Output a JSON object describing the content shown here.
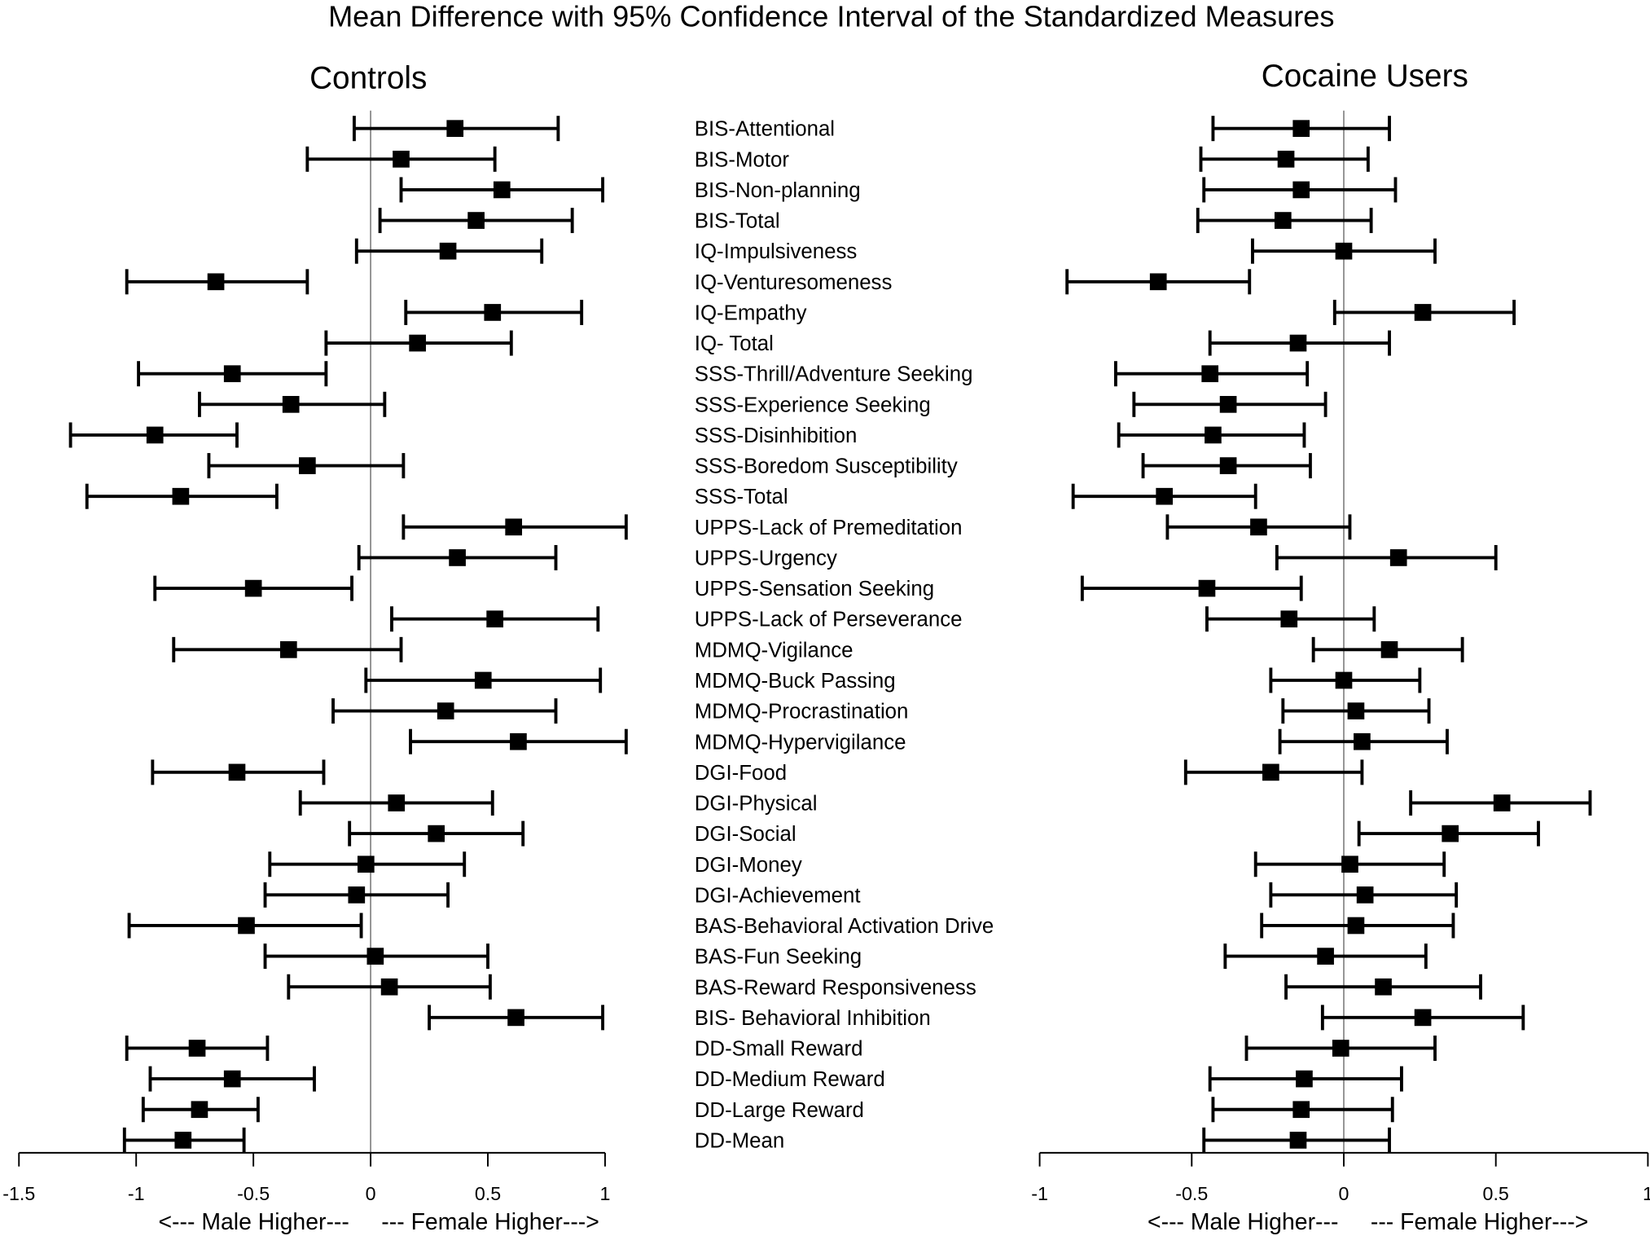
{
  "chart_data": {
    "type": "forest",
    "title": "Mean Difference with 95% Confidence Interval of the Standardized Measures",
    "measures": [
      "BIS-Attentional",
      "BIS-Motor",
      "BIS-Non-planning",
      "BIS-Total",
      "IQ-Impulsiveness",
      "IQ-Venturesomeness",
      "IQ-Empathy",
      "IQ- Total",
      "SSS-Thrill/Adventure Seeking",
      "SSS-Experience Seeking",
      "SSS-Disinhibition",
      "SSS-Boredom Susceptibility",
      "SSS-Total",
      "UPPS-Lack of Premeditation",
      "UPPS-Urgency",
      "UPPS-Sensation Seeking",
      "UPPS-Lack of Perseverance",
      "MDMQ-Vigilance",
      "MDMQ-Buck Passing",
      "MDMQ-Procrastination",
      "MDMQ-Hypervigilance",
      "DGI-Food",
      "DGI-Physical",
      "DGI-Social",
      "DGI-Money",
      "DGI-Achievement",
      "BAS-Behavioral Activation Drive",
      "BAS-Fun Seeking",
      "BAS-Reward Responsiveness",
      "BIS- Behavioral Inhibition",
      "DD-Small Reward",
      "DD-Medium Reward",
      "DD-Large Reward",
      "DD-Mean"
    ],
    "panels": [
      {
        "name": "Controls",
        "xlim": [
          -1.5,
          1
        ],
        "ticks": [
          -1.5,
          -1,
          -0.5,
          0,
          0.5,
          1
        ],
        "tick_labels": [
          "-1.5",
          "-1",
          "-0.5",
          "0",
          "0.5",
          "1"
        ],
        "xlabel": "<--- Male Higher---     --- Female Higher--->",
        "mean": [
          0.36,
          0.13,
          0.56,
          0.45,
          0.33,
          -0.66,
          0.52,
          0.2,
          -0.59,
          -0.34,
          -0.92,
          -0.27,
          -0.81,
          0.61,
          0.37,
          -0.5,
          0.53,
          -0.35,
          0.48,
          0.32,
          0.63,
          -0.57,
          0.11,
          0.28,
          -0.02,
          -0.06,
          -0.53,
          0.02,
          0.08,
          0.62,
          -0.74,
          -0.59,
          -0.73,
          -0.8
        ],
        "lower": [
          -0.07,
          -0.27,
          0.13,
          0.04,
          -0.06,
          -1.04,
          0.15,
          -0.19,
          -0.99,
          -0.73,
          -1.28,
          -0.69,
          -1.21,
          0.14,
          -0.05,
          -0.92,
          0.09,
          -0.84,
          -0.02,
          -0.16,
          0.17,
          -0.93,
          -0.3,
          -0.09,
          -0.43,
          -0.45,
          -1.03,
          -0.45,
          -0.35,
          0.25,
          -1.04,
          -0.94,
          -0.97,
          -1.05
        ],
        "upper": [
          0.8,
          0.53,
          0.99,
          0.86,
          0.73,
          -0.27,
          0.9,
          0.6,
          -0.19,
          0.06,
          -0.57,
          0.14,
          -0.4,
          1.09,
          0.79,
          -0.08,
          0.97,
          0.13,
          0.98,
          0.79,
          1.09,
          -0.2,
          0.52,
          0.65,
          0.4,
          0.33,
          -0.04,
          0.5,
          0.51,
          0.99,
          -0.44,
          -0.24,
          -0.48,
          -0.54
        ]
      },
      {
        "name": "Cocaine Users",
        "xlim": [
          -1,
          1
        ],
        "ticks": [
          -1,
          -0.5,
          0,
          0.5,
          1
        ],
        "tick_labels": [
          "-1",
          "-0.5",
          "0",
          "0.5",
          "1"
        ],
        "xlabel": "<--- Male Higher---     --- Female Higher--->",
        "mean": [
          -0.14,
          -0.19,
          -0.14,
          -0.2,
          0.0,
          -0.61,
          0.26,
          -0.15,
          -0.44,
          -0.38,
          -0.43,
          -0.38,
          -0.59,
          -0.28,
          0.18,
          -0.45,
          -0.18,
          0.15,
          0.0,
          0.04,
          0.06,
          -0.24,
          0.52,
          0.35,
          0.02,
          0.07,
          0.04,
          -0.06,
          0.13,
          0.26,
          -0.01,
          -0.13,
          -0.14,
          -0.15
        ],
        "lower": [
          -0.43,
          -0.47,
          -0.46,
          -0.48,
          -0.3,
          -0.91,
          -0.03,
          -0.44,
          -0.75,
          -0.69,
          -0.74,
          -0.66,
          -0.89,
          -0.58,
          -0.22,
          -0.86,
          -0.45,
          -0.1,
          -0.24,
          -0.2,
          -0.21,
          -0.52,
          0.22,
          0.05,
          -0.29,
          -0.24,
          -0.27,
          -0.39,
          -0.19,
          -0.07,
          -0.32,
          -0.44,
          -0.43,
          -0.46
        ],
        "upper": [
          0.15,
          0.08,
          0.17,
          0.09,
          0.3,
          -0.31,
          0.56,
          0.15,
          -0.12,
          -0.06,
          -0.13,
          -0.11,
          -0.29,
          0.02,
          0.5,
          -0.14,
          0.1,
          0.39,
          0.25,
          0.28,
          0.34,
          0.06,
          0.81,
          0.64,
          0.33,
          0.37,
          0.36,
          0.27,
          0.45,
          0.59,
          0.3,
          0.19,
          0.16,
          0.15
        ]
      }
    ]
  }
}
